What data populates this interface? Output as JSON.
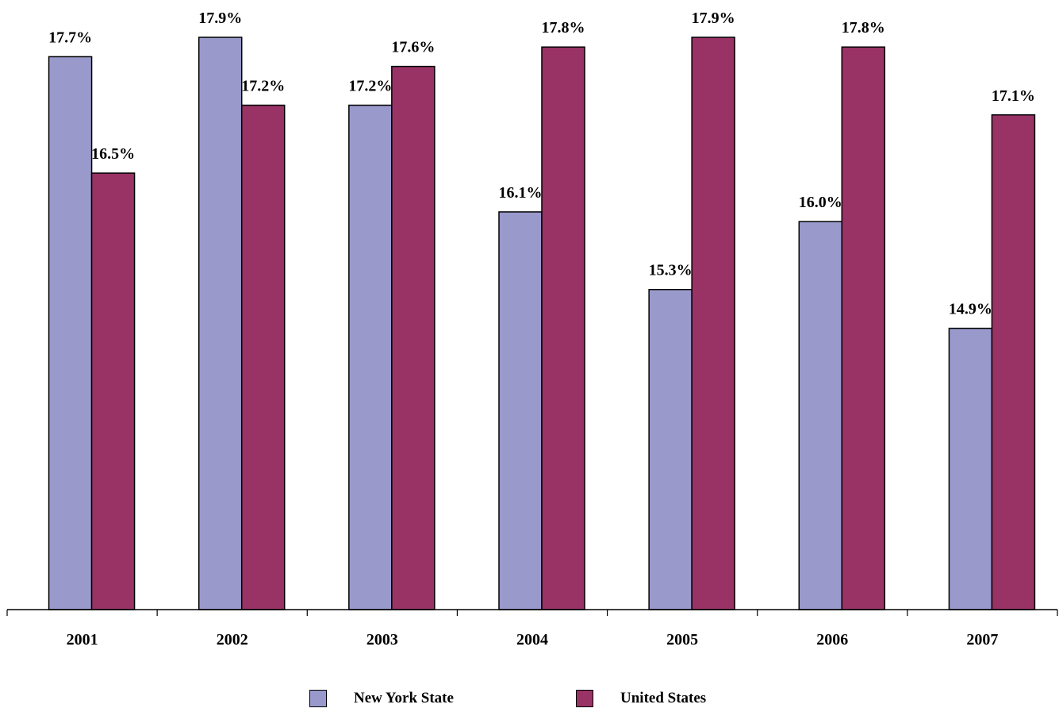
{
  "chart_data": {
    "type": "bar",
    "categories": [
      "2001",
      "2002",
      "2003",
      "2004",
      "2005",
      "2006",
      "2007"
    ],
    "series": [
      {
        "name": "New York State",
        "color": "#9999cc",
        "values": [
          17.7,
          17.9,
          17.2,
          16.1,
          15.3,
          16.0,
          14.9
        ],
        "labels": [
          "17.7%",
          "17.9%",
          "17.2%",
          "16.1%",
          "15.3%",
          "16.0%",
          "14.9%"
        ]
      },
      {
        "name": "United States",
        "color": "#993366",
        "values": [
          16.5,
          17.2,
          17.6,
          17.8,
          17.9,
          17.8,
          17.1
        ],
        "labels": [
          "16.5%",
          "17.2%",
          "17.6%",
          "17.8%",
          "17.9%",
          "17.8%",
          "17.1%"
        ]
      }
    ],
    "title": "",
    "xlabel": "",
    "ylabel": "",
    "ylim": [
      12.0,
      17.9
    ],
    "grid": false,
    "legend_position": "bottom"
  }
}
